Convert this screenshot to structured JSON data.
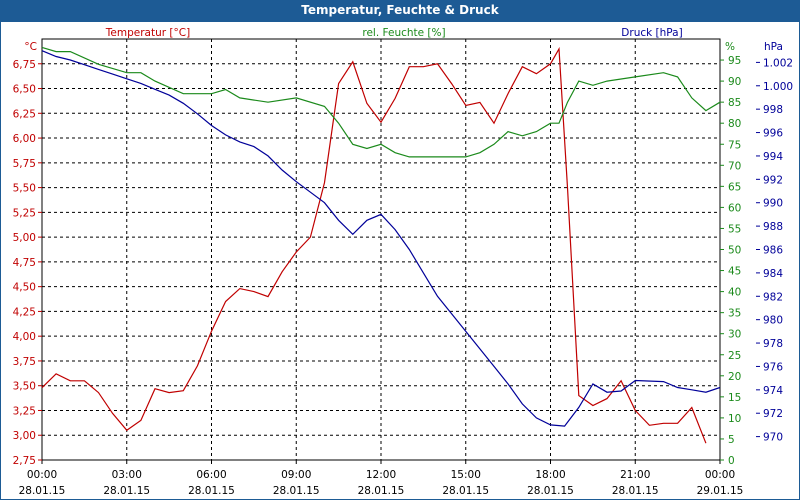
{
  "chart_data": {
    "type": "line",
    "title": "Temperatur, Feuchte & Druck",
    "colors": {
      "temperature": "#c00000",
      "humidity": "#1b8a1b",
      "pressure": "#000099",
      "grid": "#000000"
    },
    "x_ticks": [
      {
        "time": "00:00",
        "date": "28.01.15"
      },
      {
        "time": "03:00",
        "date": "28.01.15"
      },
      {
        "time": "06:00",
        "date": "28.01.15"
      },
      {
        "time": "09:00",
        "date": "28.01.15"
      },
      {
        "time": "12:00",
        "date": "28.01.15"
      },
      {
        "time": "15:00",
        "date": "28.01.15"
      },
      {
        "time": "18:00",
        "date": "28.01.15"
      },
      {
        "time": "21:00",
        "date": "28.01.15"
      },
      {
        "time": "00:00",
        "date": "29.01.15"
      }
    ],
    "xlim_hours": [
      0,
      24
    ],
    "axes": {
      "temperature": {
        "label": "Temperatur [°C]",
        "unit": "°C",
        "ylim": [
          2.75,
          7.0
        ],
        "ticks": [
          "2,75",
          "3,00",
          "3,25",
          "3,50",
          "3,75",
          "4,00",
          "4,25",
          "4,50",
          "4,75",
          "5,00",
          "5,25",
          "5,50",
          "5,75",
          "6,00",
          "6,25",
          "6,50",
          "6,75"
        ]
      },
      "humidity": {
        "label": "rel. Feuchte [%]",
        "unit": "%",
        "ylim": [
          0,
          100
        ],
        "ticks": [
          "0",
          "5",
          "10",
          "15",
          "20",
          "25",
          "30",
          "35",
          "40",
          "45",
          "50",
          "55",
          "60",
          "65",
          "70",
          "75",
          "80",
          "85",
          "90",
          "95"
        ]
      },
      "pressure": {
        "label": "Druck [hPa]",
        "unit": "hPa",
        "ylim": [
          968,
          1004
        ],
        "ticks": [
          "970",
          "972",
          "974",
          "976",
          "978",
          "980",
          "982",
          "984",
          "986",
          "988",
          "990",
          "992",
          "994",
          "996",
          "998",
          "1.000",
          "1.002"
        ]
      }
    },
    "grid": true,
    "series": [
      {
        "name": "Temperatur [°C]",
        "axis": "temperature",
        "points": [
          [
            0,
            3.48
          ],
          [
            0.5,
            3.62
          ],
          [
            1,
            3.55
          ],
          [
            1.5,
            3.55
          ],
          [
            2,
            3.43
          ],
          [
            2.5,
            3.22
          ],
          [
            3,
            3.05
          ],
          [
            3.5,
            3.15
          ],
          [
            4,
            3.47
          ],
          [
            4.5,
            3.43
          ],
          [
            5,
            3.45
          ],
          [
            5.5,
            3.7
          ],
          [
            6,
            4.05
          ],
          [
            6.5,
            4.35
          ],
          [
            7,
            4.48
          ],
          [
            7.5,
            4.45
          ],
          [
            8,
            4.4
          ],
          [
            8.5,
            4.65
          ],
          [
            9,
            4.85
          ],
          [
            9.5,
            5.0
          ],
          [
            10,
            5.55
          ],
          [
            10.5,
            6.55
          ],
          [
            11,
            6.77
          ],
          [
            11.5,
            6.35
          ],
          [
            12,
            6.16
          ],
          [
            12.5,
            6.4
          ],
          [
            13,
            6.72
          ],
          [
            13.5,
            6.72
          ],
          [
            14,
            6.75
          ],
          [
            14.5,
            6.55
          ],
          [
            15,
            6.33
          ],
          [
            15.5,
            6.36
          ],
          [
            16,
            6.15
          ],
          [
            16.5,
            6.45
          ],
          [
            17,
            6.72
          ],
          [
            17.5,
            6.65
          ],
          [
            18,
            6.75
          ],
          [
            18.3,
            6.9
          ],
          [
            18.6,
            5.5
          ],
          [
            19,
            3.4
          ],
          [
            19.5,
            3.3
          ],
          [
            20,
            3.37
          ],
          [
            20.5,
            3.55
          ],
          [
            21,
            3.25
          ],
          [
            21.5,
            3.1
          ],
          [
            22,
            3.12
          ],
          [
            22.5,
            3.12
          ],
          [
            23,
            3.28
          ],
          [
            23.5,
            2.92
          ]
        ]
      },
      {
        "name": "rel. Feuchte [%]",
        "axis": "humidity",
        "points": [
          [
            0,
            98
          ],
          [
            0.5,
            97
          ],
          [
            1,
            97
          ],
          [
            2,
            94
          ],
          [
            3,
            92
          ],
          [
            3.5,
            92
          ],
          [
            4,
            90
          ],
          [
            5,
            87
          ],
          [
            6,
            87
          ],
          [
            6.5,
            88
          ],
          [
            7,
            86
          ],
          [
            8,
            85
          ],
          [
            9,
            86
          ],
          [
            10,
            84
          ],
          [
            10.5,
            80
          ],
          [
            11,
            75
          ],
          [
            11.5,
            74
          ],
          [
            12,
            75
          ],
          [
            12.5,
            73
          ],
          [
            13,
            72
          ],
          [
            14,
            72
          ],
          [
            15,
            72
          ],
          [
            15.5,
            73
          ],
          [
            16,
            75
          ],
          [
            16.5,
            78
          ],
          [
            17,
            77
          ],
          [
            17.5,
            78
          ],
          [
            18,
            80
          ],
          [
            18.3,
            80
          ],
          [
            18.6,
            85
          ],
          [
            19,
            90
          ],
          [
            19.5,
            89
          ],
          [
            20,
            90
          ],
          [
            21,
            91
          ],
          [
            22,
            92
          ],
          [
            22.5,
            91
          ],
          [
            23,
            86
          ],
          [
            23.5,
            83
          ],
          [
            24,
            85
          ]
        ]
      },
      {
        "name": "Druck [hPa]",
        "axis": "pressure",
        "points": [
          [
            0,
            1003
          ],
          [
            0.5,
            1002.5
          ],
          [
            1,
            1002.2
          ],
          [
            1.5,
            1001.8
          ],
          [
            2,
            1001.4
          ],
          [
            2.5,
            1001
          ],
          [
            3,
            1000.6
          ],
          [
            3.5,
            1000.2
          ],
          [
            4,
            999.7
          ],
          [
            4.5,
            999.2
          ],
          [
            5,
            998.5
          ],
          [
            5.5,
            997.6
          ],
          [
            6,
            996.6
          ],
          [
            6.5,
            995.8
          ],
          [
            7,
            995.2
          ],
          [
            7.5,
            994.8
          ],
          [
            8,
            994.0
          ],
          [
            8.5,
            992.8
          ],
          [
            9,
            991.8
          ],
          [
            9.5,
            990.9
          ],
          [
            10,
            990.0
          ],
          [
            10.5,
            988.5
          ],
          [
            11,
            987.3
          ],
          [
            11.5,
            988.5
          ],
          [
            12,
            989.0
          ],
          [
            12.5,
            987.7
          ],
          [
            13,
            986.0
          ],
          [
            13.5,
            984.0
          ],
          [
            14,
            982.0
          ],
          [
            14.5,
            980.5
          ],
          [
            15,
            979.0
          ],
          [
            15.5,
            977.5
          ],
          [
            16,
            976.0
          ],
          [
            16.5,
            974.5
          ],
          [
            17,
            972.8
          ],
          [
            17.5,
            971.6
          ],
          [
            18,
            971.0
          ],
          [
            18.5,
            970.9
          ],
          [
            19,
            972.5
          ],
          [
            19.5,
            974.5
          ],
          [
            20,
            973.8
          ],
          [
            20.5,
            973.9
          ],
          [
            21,
            974.8
          ],
          [
            22,
            974.7
          ],
          [
            22.5,
            974.2
          ],
          [
            23,
            974.0
          ],
          [
            23.5,
            973.8
          ],
          [
            24,
            974.2
          ]
        ]
      }
    ]
  }
}
